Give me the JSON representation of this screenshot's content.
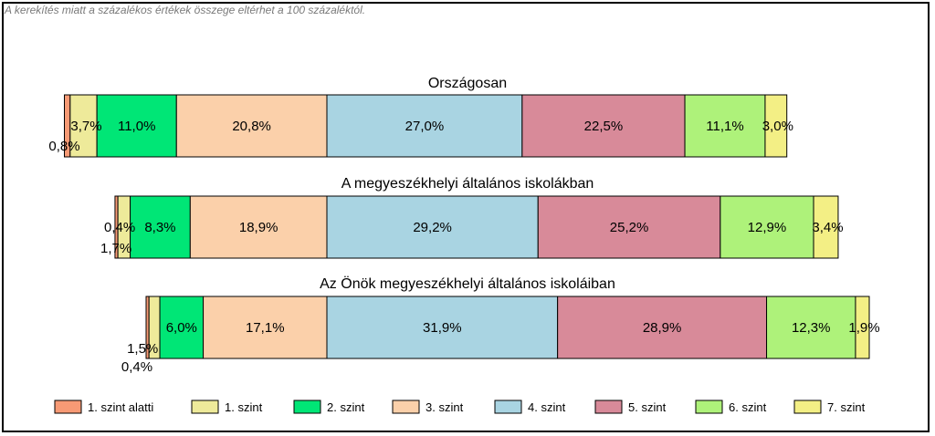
{
  "footnote": "A kerekítés miatt a  százalékos értékek összege eltérhet a 100 százaléktól.",
  "chart_data": {
    "type": "bar",
    "orientation": "horizontal-stacked",
    "categories": [
      "Országosan",
      "A megyeszékhelyi általános iskolákban",
      "Az Önök megyeszékhelyi általános iskoláiban"
    ],
    "series": [
      {
        "name": "1. szint alatti",
        "color": "#f79a75",
        "values": [
          0.8,
          0.4,
          0.4
        ]
      },
      {
        "name": "1. szint",
        "color": "#eeea9a",
        "values": [
          3.7,
          1.7,
          1.5
        ]
      },
      {
        "name": "2. szint",
        "color": "#00e676",
        "values": [
          11.0,
          8.3,
          6.0
        ]
      },
      {
        "name": "3. szint",
        "color": "#fbd0aa",
        "values": [
          20.8,
          18.9,
          17.1
        ]
      },
      {
        "name": "4. szint",
        "color": "#a9d4e2",
        "values": [
          27.0,
          29.2,
          31.9
        ]
      },
      {
        "name": "5. szint",
        "color": "#d88a99",
        "values": [
          22.5,
          25.2,
          28.9
        ]
      },
      {
        "name": "6. szint",
        "color": "#aef27a",
        "values": [
          11.1,
          12.9,
          12.3
        ]
      },
      {
        "name": "7. szint",
        "color": "#f3ef85",
        "values": [
          3.0,
          3.4,
          1.9
        ]
      }
    ],
    "labels": [
      [
        "0,8%",
        "3,7%",
        "11,0%",
        "20,8%",
        "27,0%",
        "22,5%",
        "11,1%",
        "3,0%"
      ],
      [
        "0,4%",
        "1,7%",
        "8,3%",
        "18,9%",
        "29,2%",
        "25,2%",
        "12,9%",
        "3,4%"
      ],
      [
        "0,4%",
        "1,5%",
        "6,0%",
        "17,1%",
        "31,9%",
        "28,9%",
        "12,3%",
        "1,9%"
      ]
    ],
    "legend_position": "bottom",
    "grid": false
  }
}
